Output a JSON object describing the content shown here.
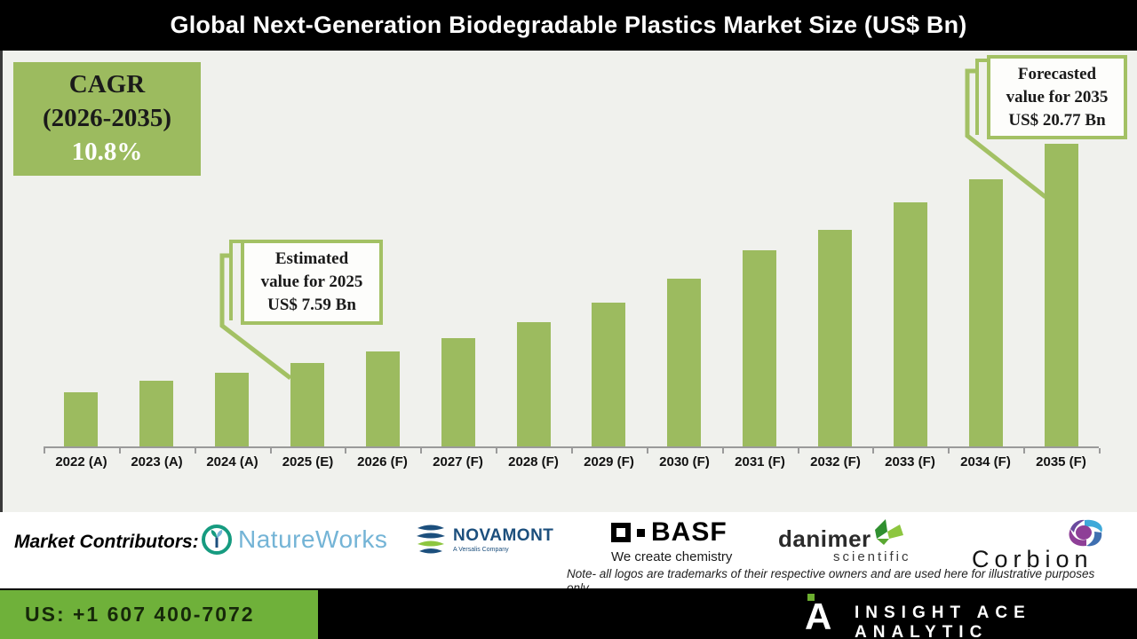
{
  "title": "Global Next-Generation Biodegradable Plastics Market Size (US$ Bn)",
  "cagr_box": {
    "line1": "CAGR",
    "line2": "(2026-2035)",
    "value": "10.8%"
  },
  "callout_2025": {
    "line1": "Estimated",
    "line2": "value for 2025",
    "line3": "US$ 7.59 Bn"
  },
  "callout_2035": {
    "line1": "Forecasted",
    "line2": "value for 2035",
    "line3": "US$ 20.77 Bn"
  },
  "chart_data": {
    "type": "bar",
    "title": "Global Next-Generation Biodegradable Plastics Market Size (US$ Bn)",
    "ylabel": "US$ Bn",
    "xlabel": "",
    "categories": [
      "2022 (A)",
      "2023 (A)",
      "2024 (A)",
      "2025 (E)",
      "2026 (F)",
      "2027 (F)",
      "2028 (F)",
      "2029 (F)",
      "2030 (F)",
      "2031 (F)",
      "2032 (F)",
      "2033 (F)",
      "2034 (F)",
      "2035 (F)"
    ],
    "values": [
      5.8,
      6.5,
      7.01,
      7.59,
      8.29,
      9.1,
      10.05,
      11.21,
      12.65,
      14.36,
      15.59,
      17.25,
      18.64,
      20.77
    ],
    "labeled_points": {
      "2025 (E)": 7.59,
      "2035 (F)": 20.77
    },
    "cagr_2026_2035_pct": 10.8,
    "ylim": [
      0,
      22
    ],
    "grid": false,
    "legend_position": "none",
    "bar_color": "#9cbb5f",
    "background_color": "#f0f1ed"
  },
  "contributors": {
    "label": "Market Contributors:",
    "logos": [
      {
        "name": "NatureWorks",
        "text": "NatureWorks"
      },
      {
        "name": "Novamont",
        "text": "NOVAMONT",
        "subtext": "A Versalis Company"
      },
      {
        "name": "BASF",
        "text": "BASF",
        "subtext": "We create chemistry"
      },
      {
        "name": "Danimer Scientific",
        "text": "danimer",
        "subtext": "scientific"
      },
      {
        "name": "Corbion",
        "text": "Corbion"
      }
    ],
    "note_line1": "Note- all logos are trademarks of their respective owners and are used here for illustrative purposes",
    "note_line2": "only"
  },
  "footer": {
    "phone": "US: +1 607 400-7072",
    "brand": "INSIGHT ACE ANALYTIC",
    "logo_letter": "A"
  },
  "colors": {
    "bar_green": "#9cbb5f",
    "callout_border_green": "#a3c164",
    "footer_green": "#6fb13a",
    "chart_background": "#f0f1ed",
    "title_bar": "#000000"
  }
}
